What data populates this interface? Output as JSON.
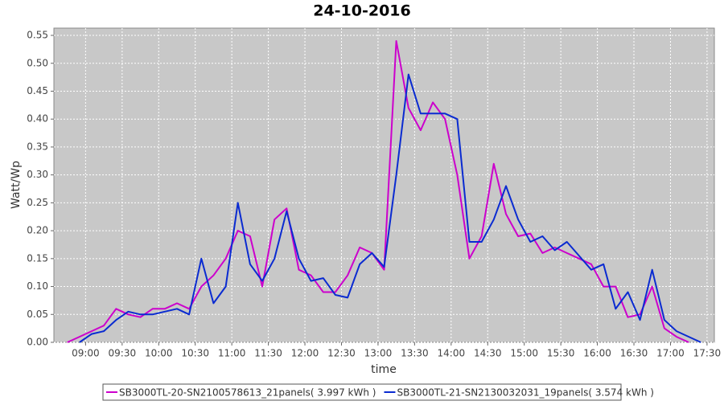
{
  "chart_data": {
    "type": "line",
    "title": "24-10-2016",
    "x_label": "time",
    "y_label": "Watt/Wp",
    "x": [
      525,
      535,
      545,
      555,
      565,
      575,
      585,
      595,
      605,
      615,
      625,
      635,
      645,
      655,
      665,
      675,
      685,
      695,
      705,
      715,
      725,
      735,
      745,
      755,
      765,
      775,
      785,
      795,
      805,
      815,
      825,
      835,
      845,
      855,
      865,
      875,
      885,
      895,
      905,
      915,
      925,
      935,
      945,
      955,
      965,
      975,
      985,
      995,
      1005,
      1015,
      1025,
      1035,
      1045
    ],
    "series": [
      {
        "name": "SB3000TL-20-SN2100578613_21panels( 3.997 kWh )",
        "color": "#cc00cc",
        "values": [
          0.0,
          0.01,
          0.02,
          0.03,
          0.06,
          0.05,
          0.045,
          0.06,
          0.06,
          0.07,
          0.06,
          0.1,
          0.12,
          0.15,
          0.2,
          0.19,
          0.1,
          0.22,
          0.24,
          0.13,
          0.12,
          0.09,
          0.09,
          0.12,
          0.17,
          0.16,
          0.13,
          0.54,
          0.42,
          0.38,
          0.43,
          0.4,
          0.3,
          0.15,
          0.19,
          0.32,
          0.23,
          0.19,
          0.195,
          0.16,
          0.17,
          0.16,
          0.15,
          0.14,
          0.1,
          0.1,
          0.045,
          0.05,
          0.1,
          0.025,
          0.01,
          0.0,
          null
        ]
      },
      {
        "name": "SB3000TL-21-SN2130032031_19panels( 3.574 kWh )",
        "color": "#0a2bd1",
        "values": [
          null,
          0.0,
          0.015,
          0.02,
          0.04,
          0.055,
          0.05,
          0.05,
          0.055,
          0.06,
          0.05,
          0.15,
          0.07,
          0.1,
          0.25,
          0.14,
          0.11,
          0.15,
          0.235,
          0.15,
          0.11,
          0.115,
          0.085,
          0.08,
          0.14,
          0.16,
          0.135,
          0.3,
          0.48,
          0.41,
          0.41,
          0.41,
          0.4,
          0.18,
          0.18,
          0.22,
          0.28,
          0.22,
          0.18,
          0.19,
          0.165,
          0.18,
          0.155,
          0.13,
          0.14,
          0.06,
          0.09,
          0.04,
          0.13,
          0.04,
          0.02,
          0.01,
          0.0
        ]
      }
    ],
    "xlim": [
      514,
      1056
    ],
    "xticks": [
      {
        "value": 540,
        "label": "09:00"
      },
      {
        "value": 570,
        "label": "09:30"
      },
      {
        "value": 600,
        "label": "10:00"
      },
      {
        "value": 630,
        "label": "10:30"
      },
      {
        "value": 660,
        "label": "11:00"
      },
      {
        "value": 690,
        "label": "11:30"
      },
      {
        "value": 720,
        "label": "12:00"
      },
      {
        "value": 750,
        "label": "12:30"
      },
      {
        "value": 780,
        "label": "13:00"
      },
      {
        "value": 810,
        "label": "13:30"
      },
      {
        "value": 840,
        "label": "14:00"
      },
      {
        "value": 870,
        "label": "14:30"
      },
      {
        "value": 900,
        "label": "15:00"
      },
      {
        "value": 930,
        "label": "15:30"
      },
      {
        "value": 960,
        "label": "16:00"
      },
      {
        "value": 990,
        "label": "16:30"
      },
      {
        "value": 1020,
        "label": "17:00"
      },
      {
        "value": 1050,
        "label": "17:30"
      }
    ],
    "ylim": [
      0,
      0.563
    ],
    "yticks": [
      {
        "value": 0,
        "label": "0.00"
      },
      0.05,
      {
        "value": 0.1,
        "label": "0.10"
      },
      0.15,
      {
        "value": 0.2,
        "label": "0.20"
      },
      0.25,
      {
        "value": 0.3,
        "label": "0.30"
      },
      0.35,
      {
        "value": 0.4,
        "label": "0.40"
      },
      0.45,
      {
        "value": 0.5,
        "label": "0.50"
      },
      0.55
    ],
    "grid": true,
    "legend": "bottom"
  }
}
